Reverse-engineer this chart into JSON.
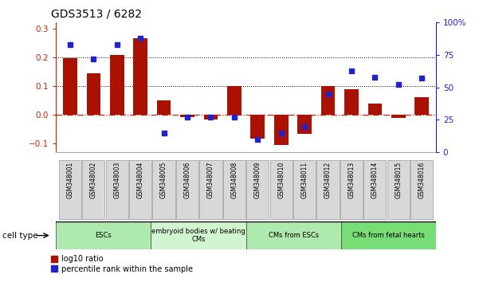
{
  "title": "GDS3513 / 6282",
  "samples": [
    "GSM348001",
    "GSM348002",
    "GSM348003",
    "GSM348004",
    "GSM348005",
    "GSM348006",
    "GSM348007",
    "GSM348008",
    "GSM348009",
    "GSM348010",
    "GSM348011",
    "GSM348012",
    "GSM348013",
    "GSM348014",
    "GSM348015",
    "GSM348016"
  ],
  "log10_ratio": [
    0.197,
    0.145,
    0.208,
    0.265,
    0.049,
    -0.008,
    -0.015,
    0.101,
    -0.083,
    -0.105,
    -0.065,
    0.1,
    0.088,
    0.038,
    -0.01,
    0.062
  ],
  "percentile_rank": [
    83,
    72,
    83,
    88,
    15,
    27,
    27,
    27,
    10,
    15,
    20,
    45,
    63,
    58,
    52,
    57
  ],
  "cell_types": [
    {
      "label": "ESCs",
      "start": 0,
      "end": 4,
      "color": "#aeeaae"
    },
    {
      "label": "embryoid bodies w/ beating\nCMs",
      "start": 4,
      "end": 8,
      "color": "#d0f5d0"
    },
    {
      "label": "CMs from ESCs",
      "start": 8,
      "end": 12,
      "color": "#aeeaae"
    },
    {
      "label": "CMs from fetal hearts",
      "start": 12,
      "end": 16,
      "color": "#77dd77"
    }
  ],
  "bar_color": "#aa1100",
  "dot_color": "#2222cc",
  "ylim_left": [
    -0.13,
    0.32
  ],
  "ylim_right": [
    0,
    100
  ],
  "ylabel_left_color": "#cc2200",
  "ylabel_right_color": "#2222cc",
  "yticks_left": [
    -0.1,
    0.0,
    0.1,
    0.2,
    0.3
  ],
  "yticks_right": [
    0,
    25,
    50,
    75,
    100
  ],
  "ytick_labels_right": [
    "0",
    "25",
    "50",
    "75",
    "100%"
  ],
  "hline_zero_color": "#cc2200",
  "hline_dotted_vals": [
    0.1,
    0.2
  ],
  "background_color": "#ffffff",
  "legend_red_label": "log10 ratio",
  "legend_blue_label": "percentile rank within the sample",
  "cell_type_label": "cell type"
}
